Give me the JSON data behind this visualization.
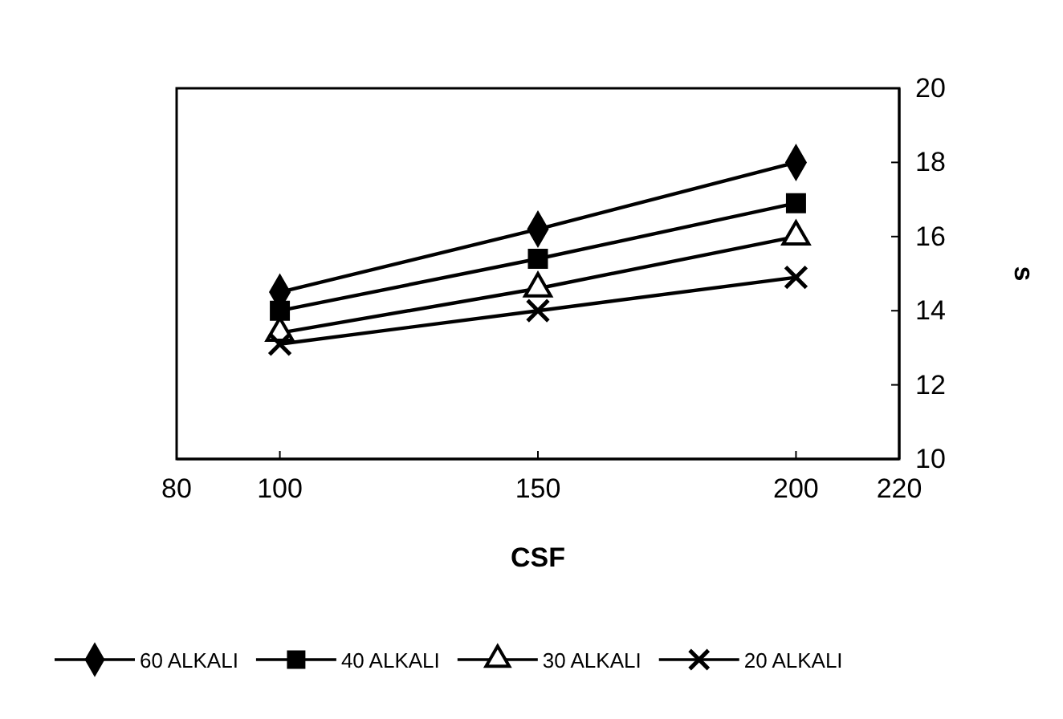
{
  "chart_data": {
    "type": "line",
    "xlabel": "CSF",
    "ylabel": "s",
    "x": [
      100,
      150,
      200
    ],
    "xlim": [
      80,
      220
    ],
    "xticks": [
      80,
      100,
      150,
      200,
      220
    ],
    "ylim": [
      10,
      20
    ],
    "yticks": [
      10,
      12,
      14,
      16,
      18,
      20
    ],
    "grid": false,
    "legend": "bottom",
    "line_style": "solid",
    "series": [
      {
        "name": "60 ALKALI",
        "color": "#000000",
        "marker": "diamond",
        "values": [
          14.5,
          16.2,
          18.0
        ]
      },
      {
        "name": "40 ALKALI",
        "color": "#000000",
        "marker": "square",
        "values": [
          14.0,
          15.4,
          16.9
        ]
      },
      {
        "name": "30 ALKALI",
        "color": "#000000",
        "marker": "triangle",
        "values": [
          13.4,
          14.6,
          16.0
        ]
      },
      {
        "name": "20 ALKALI",
        "color": "#000000",
        "marker": "cross",
        "values": [
          13.1,
          14.0,
          14.9
        ]
      }
    ]
  }
}
